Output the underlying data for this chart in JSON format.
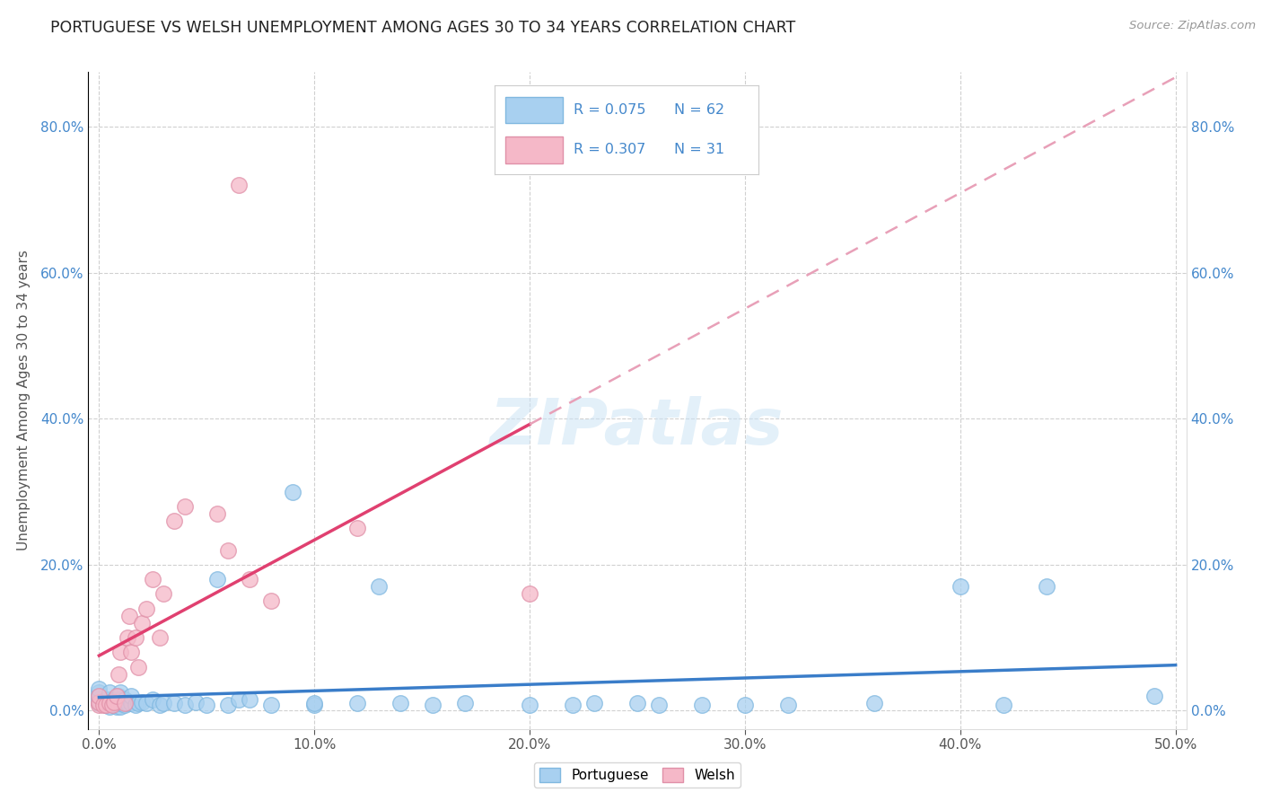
{
  "title": "PORTUGUESE VS WELSH UNEMPLOYMENT AMONG AGES 30 TO 34 YEARS CORRELATION CHART",
  "source": "Source: ZipAtlas.com",
  "ylabel": "Unemployment Among Ages 30 to 34 years",
  "xlim": [
    -0.005,
    0.505
  ],
  "ylim": [
    -0.025,
    0.875
  ],
  "xticks": [
    0.0,
    0.1,
    0.2,
    0.3,
    0.4,
    0.5
  ],
  "yticks": [
    0.0,
    0.2,
    0.4,
    0.6,
    0.8
  ],
  "background_color": "#ffffff",
  "grid_color": "#d0d0d0",
  "portuguese_color": "#a8d0f0",
  "welsh_color": "#f5b8c8",
  "portuguese_edge": "#80b8e0",
  "welsh_edge": "#e090a8",
  "trend_portuguese_color": "#3a7dc9",
  "trend_welsh_solid_color": "#e04070",
  "trend_welsh_dashed_color": "#e8a0b8",
  "R_portuguese": 0.075,
  "N_portuguese": 62,
  "R_welsh": 0.307,
  "N_welsh": 31,
  "legend_text_color": "#4488cc",
  "port_x": [
    0.0,
    0.0,
    0.0,
    0.0,
    0.0,
    0.003,
    0.003,
    0.005,
    0.005,
    0.005,
    0.005,
    0.007,
    0.007,
    0.008,
    0.008,
    0.009,
    0.01,
    0.01,
    0.01,
    0.01,
    0.012,
    0.012,
    0.013,
    0.015,
    0.015,
    0.017,
    0.018,
    0.02,
    0.022,
    0.025,
    0.028,
    0.03,
    0.035,
    0.04,
    0.045,
    0.05,
    0.055,
    0.06,
    0.065,
    0.07,
    0.08,
    0.09,
    0.1,
    0.1,
    0.12,
    0.13,
    0.14,
    0.155,
    0.17,
    0.2,
    0.22,
    0.23,
    0.25,
    0.26,
    0.28,
    0.3,
    0.32,
    0.36,
    0.4,
    0.42,
    0.44,
    0.49
  ],
  "port_y": [
    0.01,
    0.015,
    0.02,
    0.025,
    0.03,
    0.008,
    0.015,
    0.005,
    0.01,
    0.015,
    0.025,
    0.008,
    0.015,
    0.005,
    0.012,
    0.02,
    0.005,
    0.01,
    0.015,
    0.025,
    0.008,
    0.015,
    0.01,
    0.01,
    0.02,
    0.008,
    0.01,
    0.012,
    0.01,
    0.015,
    0.008,
    0.01,
    0.01,
    0.008,
    0.012,
    0.008,
    0.18,
    0.008,
    0.015,
    0.015,
    0.008,
    0.3,
    0.008,
    0.01,
    0.01,
    0.17,
    0.01,
    0.008,
    0.01,
    0.008,
    0.008,
    0.01,
    0.01,
    0.008,
    0.008,
    0.008,
    0.008,
    0.01,
    0.17,
    0.008,
    0.17,
    0.02
  ],
  "welsh_x": [
    0.0,
    0.0,
    0.0,
    0.002,
    0.003,
    0.005,
    0.006,
    0.007,
    0.008,
    0.009,
    0.01,
    0.012,
    0.013,
    0.014,
    0.015,
    0.017,
    0.018,
    0.02,
    0.022,
    0.025,
    0.028,
    0.03,
    0.035,
    0.04,
    0.055,
    0.06,
    0.065,
    0.07,
    0.08,
    0.12,
    0.2
  ],
  "welsh_y": [
    0.008,
    0.012,
    0.02,
    0.008,
    0.008,
    0.01,
    0.008,
    0.012,
    0.02,
    0.05,
    0.08,
    0.01,
    0.1,
    0.13,
    0.08,
    0.1,
    0.06,
    0.12,
    0.14,
    0.18,
    0.1,
    0.16,
    0.26,
    0.28,
    0.27,
    0.22,
    0.72,
    0.18,
    0.15,
    0.25,
    0.16
  ]
}
